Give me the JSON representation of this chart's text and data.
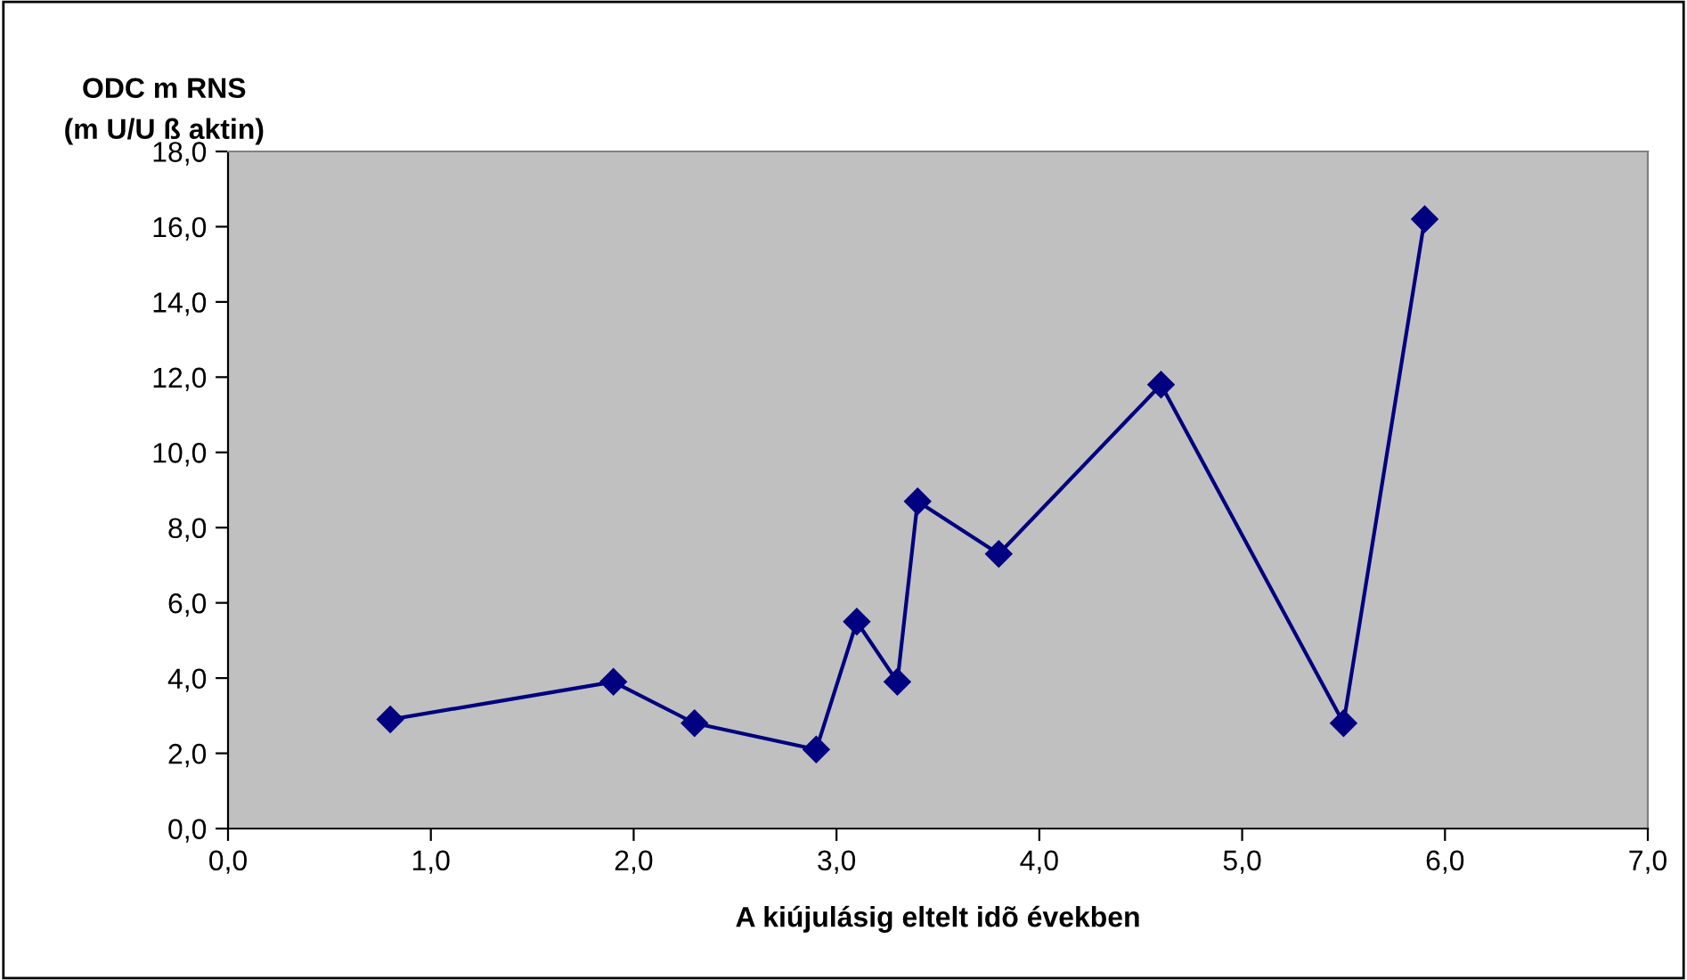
{
  "chart_data": {
    "type": "line",
    "ylabel": "ODC m RNS\n(m U/U ß aktin)",
    "xlabel": "A kiújulásig eltelt idõ években",
    "x": [
      0.8,
      1.9,
      2.3,
      2.9,
      3.1,
      3.3,
      3.4,
      3.8,
      4.6,
      5.5,
      5.9
    ],
    "series": [
      {
        "color": "#000080",
        "values": [
          2.9,
          3.9,
          2.8,
          2.1,
          5.5,
          3.9,
          8.7,
          7.3,
          11.8,
          2.8,
          16.2
        ]
      }
    ],
    "xlim": [
      0,
      7
    ],
    "ylim": [
      0,
      18
    ],
    "xticks": [
      {
        "value": 0,
        "label": "0,0"
      },
      {
        "value": 1,
        "label": "1,0"
      },
      {
        "value": 2,
        "label": "2,0"
      },
      {
        "value": 3,
        "label": "3,0"
      },
      {
        "value": 4,
        "label": "4,0"
      },
      {
        "value": 5,
        "label": "5,0"
      },
      {
        "value": 6,
        "label": "6,0"
      },
      {
        "value": 7,
        "label": "7,0"
      }
    ],
    "yticks": [
      {
        "value": 0,
        "label": "0,0"
      },
      {
        "value": 2,
        "label": "2,0"
      },
      {
        "value": 4,
        "label": "4,0"
      },
      {
        "value": 6,
        "label": "6,0"
      },
      {
        "value": 8,
        "label": "8,0"
      },
      {
        "value": 10,
        "label": "10,0"
      },
      {
        "value": 12,
        "label": "12,0"
      },
      {
        "value": 14,
        "label": "14,0"
      },
      {
        "value": 16,
        "label": "16,0"
      },
      {
        "value": 18,
        "label": "18,0"
      }
    ],
    "marker": "diamond",
    "line_style": "solid",
    "grid": false,
    "legend": false
  }
}
